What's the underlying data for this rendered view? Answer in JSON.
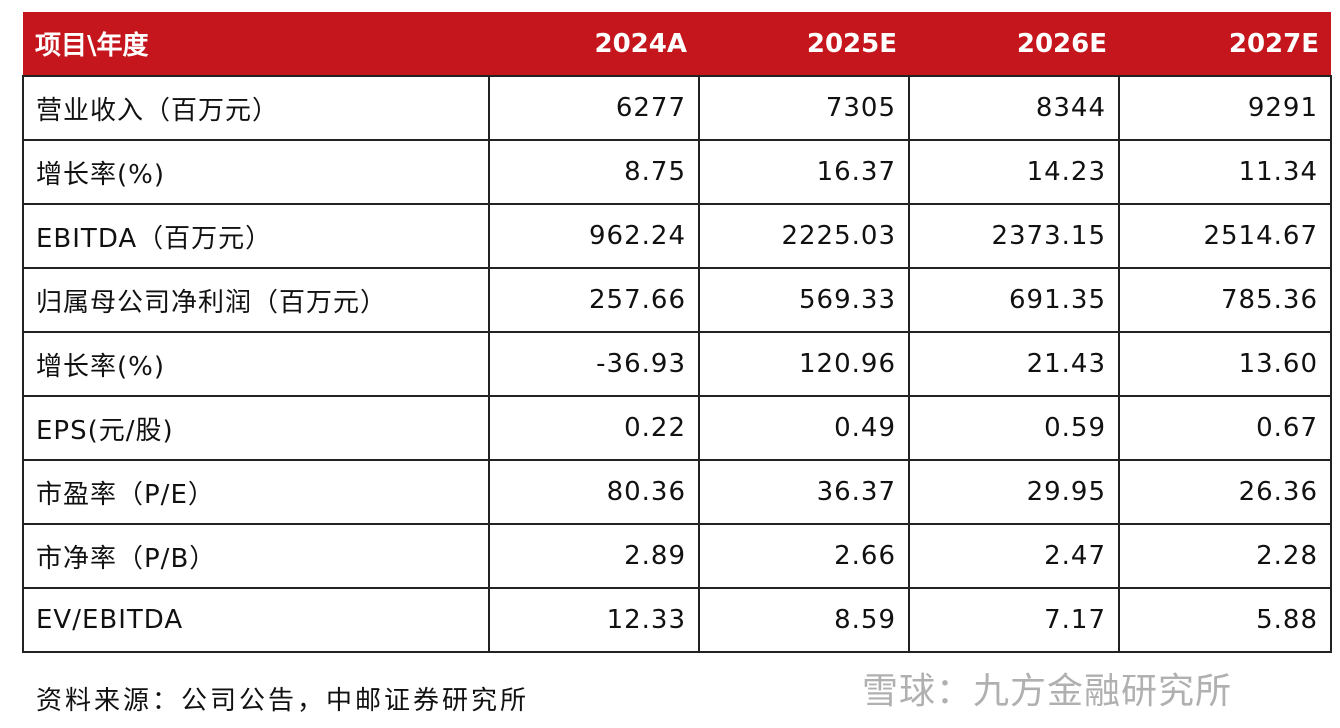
{
  "table": {
    "header": [
      "项目\\年度",
      "2024A",
      "2025E",
      "2026E",
      "2027E"
    ],
    "rows": [
      [
        "营业收入（百万元）",
        "6277",
        "7305",
        "8344",
        "9291"
      ],
      [
        "增长率(%)",
        "8.75",
        "16.37",
        "14.23",
        "11.34"
      ],
      [
        "EBITDA（百万元）",
        "962.24",
        "2225.03",
        "2373.15",
        "2514.67"
      ],
      [
        "归属母公司净利润（百万元）",
        "257.66",
        "569.33",
        "691.35",
        "785.36"
      ],
      [
        "增长率(%)",
        "-36.93",
        "120.96",
        "21.43",
        "13.60"
      ],
      [
        "EPS(元/股)",
        "0.22",
        "0.49",
        "0.59",
        "0.67"
      ],
      [
        "市盈率（P/E）",
        "80.36",
        "36.37",
        "29.95",
        "26.36"
      ],
      [
        "市净率（P/B）",
        "2.89",
        "2.66",
        "2.47",
        "2.28"
      ],
      [
        "EV/EBITDA",
        "12.33",
        "8.59",
        "7.17",
        "5.88"
      ]
    ]
  },
  "source": "资料来源：公司公告，中邮证券研究所",
  "watermark": "雪球：九方金融研究所"
}
